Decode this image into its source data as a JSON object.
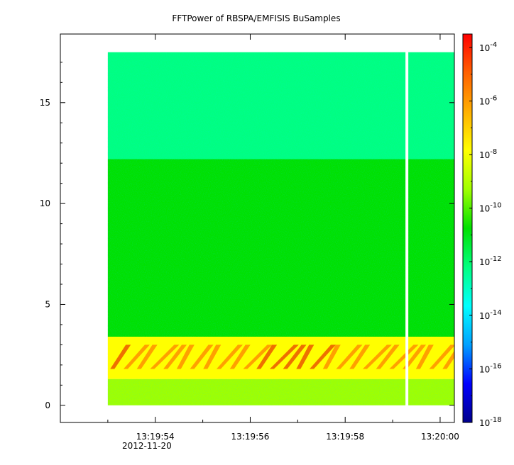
{
  "chart_data": {
    "type": "heatmap",
    "title": "FFTPower of RBSPA/EMFISIS  BuSamples",
    "x_axis": {
      "tick_labels": [
        "13:19:54",
        "13:19:56",
        "13:19:58",
        "13:20:00"
      ],
      "tick_seconds": [
        54,
        56,
        58,
        60
      ],
      "range_seconds": [
        52.0,
        60.3
      ],
      "date_label": "2012-11-20"
    },
    "y_axis": {
      "ticks": [
        0,
        5,
        10,
        15
      ],
      "range": [
        -0.85,
        18.4
      ]
    },
    "colorbar": {
      "scale": "log",
      "range_exponent": [
        -18,
        -3.5
      ],
      "ticks": [
        {
          "base": "10",
          "exp": "-4",
          "value_exp": -4
        },
        {
          "base": "10",
          "exp": "-6",
          "value_exp": -6
        },
        {
          "base": "10",
          "exp": "-8",
          "value_exp": -8
        },
        {
          "base": "10",
          "exp": "-10",
          "value_exp": -10
        },
        {
          "base": "10",
          "exp": "-12",
          "value_exp": -12
        },
        {
          "base": "10",
          "exp": "-14",
          "value_exp": -14
        },
        {
          "base": "10",
          "exp": "-16",
          "value_exp": -16
        },
        {
          "base": "10",
          "exp": "-18",
          "value_exp": -18
        }
      ]
    },
    "data_extent": {
      "t_start": 53.0,
      "t_end": 60.3,
      "y_start": 0,
      "y_end": 17.5
    },
    "data_gap_seconds": 59.3,
    "bands": [
      {
        "y_from": 12.2,
        "y_to": 17.5,
        "level_exp": -11.5
      },
      {
        "y_from": 3.4,
        "y_to": 12.2,
        "level_exp": -10.1
      },
      {
        "y_from": 1.3,
        "y_to": 3.4,
        "level_exp": -7.2
      },
      {
        "y_from": 0,
        "y_to": 1.3,
        "level_exp": -9.8
      }
    ],
    "colors": {
      "ramp": [
        "#00008b",
        "#0000ff",
        "#00a0ff",
        "#00ffff",
        "#00ff80",
        "#00e000",
        "#a0ff00",
        "#ffff00",
        "#ffb000",
        "#ff6000",
        "#ff0000"
      ]
    }
  }
}
